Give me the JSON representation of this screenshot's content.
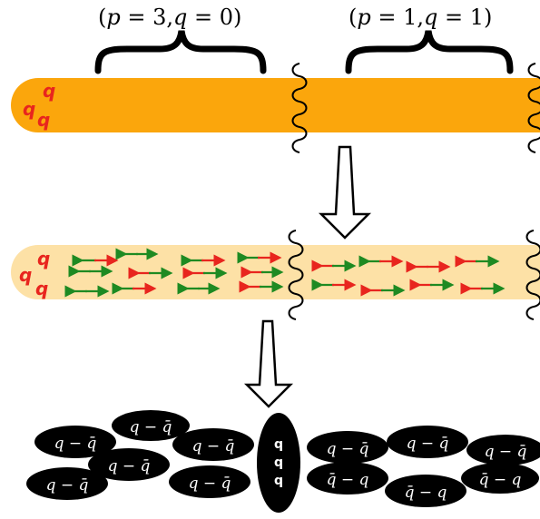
{
  "labels": {
    "left": {
      "open": "(",
      "p": "p",
      "eq1": " = 3,",
      "q": "q",
      "eq2": " = 0)"
    },
    "right": {
      "open": "(",
      "p": "p",
      "eq1": " = 1,",
      "q": "q",
      "eq2": " = 1)"
    }
  },
  "quark": "q",
  "pairs": {
    "qqbar": "q − q̄",
    "qbarq": "q̄ − q"
  },
  "colors": {
    "string": "#fba60c",
    "string_light": "#fde1a6",
    "quark_red": "#e8251e",
    "arrow_red": "#e8251e",
    "arrow_green": "#1e8a22",
    "ellipse": "#000000"
  }
}
